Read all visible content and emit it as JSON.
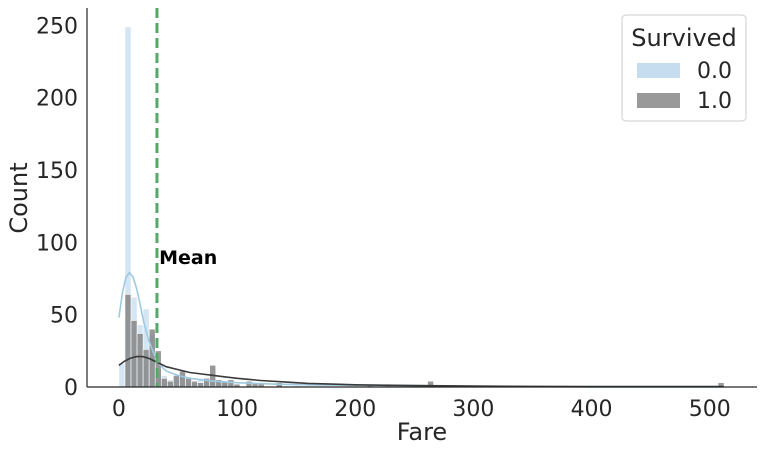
{
  "chart_data": {
    "type": "bar",
    "subtype": "histogram-with-kde",
    "title": "",
    "xlabel": "Fare",
    "ylabel": "Count",
    "xlim": [
      -27,
      540
    ],
    "ylim": [
      0,
      262
    ],
    "xticks": [
      0,
      100,
      200,
      300,
      400,
      500
    ],
    "yticks": [
      0,
      50,
      100,
      150,
      200,
      250
    ],
    "grid": false,
    "bin_width": 5.12,
    "legend": {
      "title": "Survived",
      "position": "top-right",
      "entries": [
        "0.0",
        "1.0"
      ]
    },
    "series": [
      {
        "name": "0.0",
        "color": "#c6dcef",
        "kde_color": "#9ecae1",
        "bins": [
          [
            0,
            16
          ],
          [
            5.12,
            249
          ],
          [
            10.25,
            62
          ],
          [
            15.37,
            43
          ],
          [
            20.49,
            54
          ],
          [
            25.61,
            36
          ],
          [
            30.74,
            12
          ],
          [
            35.86,
            8
          ],
          [
            40.98,
            5
          ],
          [
            46.1,
            6
          ],
          [
            51.23,
            9
          ],
          [
            56.35,
            7
          ],
          [
            61.47,
            3
          ],
          [
            66.59,
            6
          ],
          [
            71.72,
            5
          ],
          [
            76.84,
            6
          ],
          [
            81.96,
            4
          ],
          [
            87.08,
            3
          ],
          [
            92.21,
            2
          ],
          [
            97.33,
            1
          ],
          [
            107.57,
            1
          ],
          [
            112.7,
            1
          ],
          [
            133.18,
            1
          ],
          [
            148.55,
            1
          ],
          [
            209.98,
            1
          ],
          [
            220.22,
            1
          ],
          [
            245.82,
            1
          ],
          [
            261.18,
            2
          ]
        ],
        "kde": [
          [
            0,
            48
          ],
          [
            3,
            65
          ],
          [
            6,
            76
          ],
          [
            9,
            79
          ],
          [
            12,
            76
          ],
          [
            15,
            68
          ],
          [
            18,
            57
          ],
          [
            21,
            45
          ],
          [
            25,
            33
          ],
          [
            30,
            22
          ],
          [
            35,
            15
          ],
          [
            40,
            11
          ],
          [
            50,
            8
          ],
          [
            60,
            6
          ],
          [
            80,
            4
          ],
          [
            100,
            3
          ],
          [
            130,
            2
          ],
          [
            160,
            1.5
          ],
          [
            200,
            1.2
          ],
          [
            250,
            1
          ],
          [
            300,
            0.5
          ],
          [
            400,
            0.1
          ],
          [
            512,
            0
          ]
        ]
      },
      {
        "name": "1.0",
        "color": "#808080",
        "kde_color": "#3a3a3a",
        "bins": [
          [
            5.12,
            64
          ],
          [
            10.25,
            46
          ],
          [
            15.37,
            37
          ],
          [
            20.49,
            26
          ],
          [
            25.61,
            40
          ],
          [
            30.74,
            25
          ],
          [
            35.86,
            6
          ],
          [
            40.98,
            4
          ],
          [
            46.1,
            8
          ],
          [
            51.23,
            11
          ],
          [
            56.35,
            6
          ],
          [
            61.47,
            4
          ],
          [
            66.59,
            3
          ],
          [
            71.72,
            6
          ],
          [
            76.84,
            15
          ],
          [
            81.96,
            5
          ],
          [
            87.08,
            4
          ],
          [
            92.21,
            5
          ],
          [
            97.33,
            2
          ],
          [
            107.57,
            4
          ],
          [
            112.7,
            3
          ],
          [
            117.82,
            3
          ],
          [
            133.18,
            3
          ],
          [
            209.98,
            2
          ],
          [
            225.34,
            2
          ],
          [
            261.18,
            4
          ],
          [
            507.0,
            3
          ]
        ],
        "kde": [
          [
            0,
            15
          ],
          [
            5,
            18
          ],
          [
            10,
            20
          ],
          [
            15,
            21
          ],
          [
            20,
            21
          ],
          [
            25,
            20
          ],
          [
            30,
            18
          ],
          [
            35,
            16
          ],
          [
            40,
            14
          ],
          [
            50,
            12
          ],
          [
            60,
            10
          ],
          [
            70,
            9
          ],
          [
            80,
            8
          ],
          [
            90,
            7
          ],
          [
            100,
            6
          ],
          [
            120,
            4.5
          ],
          [
            140,
            3.5
          ],
          [
            160,
            2.5
          ],
          [
            180,
            2
          ],
          [
            200,
            1.5
          ],
          [
            250,
            1
          ],
          [
            300,
            0.6
          ],
          [
            350,
            0.4
          ],
          [
            400,
            0.3
          ],
          [
            450,
            0.3
          ],
          [
            512,
            0.3
          ]
        ]
      }
    ],
    "annotations": [
      {
        "type": "vline",
        "x": 32.2,
        "color": "#55a868",
        "style": "dashed"
      },
      {
        "type": "text",
        "text": "Mean",
        "x": 34,
        "y": 90,
        "bold": true
      }
    ]
  }
}
